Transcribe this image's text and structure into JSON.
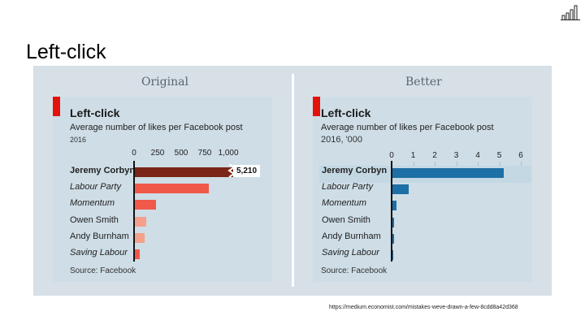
{
  "slide": {
    "title": "Left-click",
    "url": "https://medium.economist.com/mistakes-weve-drawn-a-few-8cdd8a42d368"
  },
  "colors": {
    "dark_red": "#7a2517",
    "red": "#f0584a",
    "light_red": "#f4a08a",
    "blue": "#1d6fa5",
    "economist_red": "#e3120b"
  },
  "chart_data": [
    {
      "type": "bar",
      "panel_heading": "Original",
      "title": "Left-click",
      "subtitle": "Average number of likes per Facebook post",
      "subtitle_year": "2016",
      "categories": [
        "Jeremy Corbyn",
        "Labour Party",
        "Momentum",
        "Owen Smith",
        "Andy Burnham",
        "Saving Labour"
      ],
      "values": [
        5210,
        790,
        230,
        130,
        110,
        60
      ],
      "axis_max_display": 1000,
      "ticks": [
        0,
        250,
        500,
        750,
        1000
      ],
      "tick_labels": [
        "0",
        "250",
        "500",
        "750",
        "1,000"
      ],
      "value_label": "5,210",
      "source": "Source: Facebook"
    },
    {
      "type": "bar",
      "panel_heading": "Better",
      "title": "Left-click",
      "subtitle": "Average number of likes per Facebook post",
      "subtitle_year": "2016, '000",
      "categories": [
        "Jeremy Corbyn",
        "Labour Party",
        "Momentum",
        "Owen Smith",
        "Andy Burnham",
        "Saving Labour"
      ],
      "values": [
        5.21,
        0.79,
        0.23,
        0.13,
        0.11,
        0.06
      ],
      "xlim": [
        0,
        6
      ],
      "ticks": [
        0,
        1,
        2,
        3,
        4,
        5,
        6
      ],
      "tick_labels": [
        "0",
        "1",
        "2",
        "3",
        "4",
        "5",
        "6"
      ],
      "source": "Source: Facebook"
    }
  ]
}
